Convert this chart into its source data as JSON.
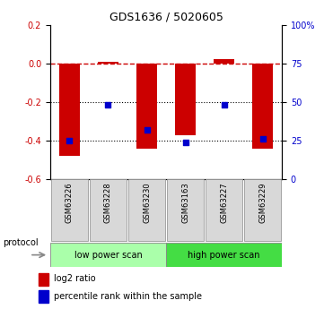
{
  "title": "GDS1636 / 5020605",
  "samples": [
    "GSM63226",
    "GSM63228",
    "GSM63230",
    "GSM63163",
    "GSM63227",
    "GSM63229"
  ],
  "log2_ratio": [
    -0.48,
    0.01,
    -0.44,
    -0.37,
    0.02,
    -0.44
  ],
  "percentile_rank": [
    25,
    48,
    32,
    24,
    48,
    26
  ],
  "ylim_left": [
    -0.6,
    0.2
  ],
  "ylim_right": [
    0,
    100
  ],
  "bar_color": "#cc0000",
  "dot_color": "#0000cc",
  "dashed_line_color": "#cc0000",
  "dotted_line_color": "#000000",
  "low_power_color": "#aaffaa",
  "high_power_color": "#44dd44",
  "sample_box_color": "#d8d8d8",
  "protocol_label": "protocol",
  "legend_items": [
    {
      "color": "#cc0000",
      "label": "log2 ratio"
    },
    {
      "color": "#0000cc",
      "label": "percentile rank within the sample"
    }
  ],
  "bar_width": 0.55,
  "tick_left": [
    -0.6,
    -0.4,
    -0.2,
    0.0,
    0.2
  ],
  "tick_right": [
    0,
    25,
    50,
    75,
    100
  ],
  "tick_right_labels": [
    "0",
    "25",
    "50",
    "75",
    "100%"
  ],
  "background_color": "#ffffff"
}
